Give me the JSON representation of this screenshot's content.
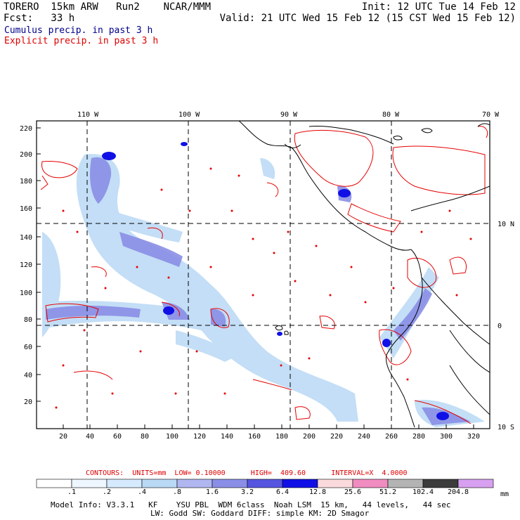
{
  "header": {
    "model": "TORERO  15km ARW   Run2    NCAR/MMM",
    "init": "Init: 12 UTC Tue 14 Feb 12",
    "fcst": "Fcst:   33 h",
    "valid": "Valid: 21 UTC Wed 15 Feb 12 (15 CST Wed 15 Feb 12)",
    "cumulus": "Cumulus precip. in past 3 h",
    "explicit": "Explicit precip. in past 3 h"
  },
  "map": {
    "top_labels": [
      "110 W",
      "100 W",
      "90 W",
      "80 W",
      "70 W"
    ],
    "right_labels": [
      "10 N",
      "0",
      "10 S"
    ],
    "y_ticks": [
      "220",
      "200",
      "180",
      "160",
      "140",
      "120",
      "100",
      "80",
      "60",
      "40",
      "20"
    ],
    "x_ticks": [
      "20",
      "40",
      "60",
      "80",
      "100",
      "120",
      "140",
      "160",
      "180",
      "200",
      "220",
      "240",
      "260",
      "280",
      "300",
      "320"
    ],
    "colors": {
      "cumulus": "#1e1ee6",
      "explicit": "#e60000",
      "coast": "#000000"
    }
  },
  "contour_info": {
    "text": "CONTOURS:  UNITS=mm  LOW= 0.10000      HIGH=  409.60      INTERVAL=X  4.0000"
  },
  "colorbar": {
    "labels": [
      ".1",
      ".2",
      ".4",
      ".8",
      "1.6",
      "3.2",
      "6.4",
      "12.8",
      "25.6",
      "51.2",
      "102.4",
      "204.8"
    ],
    "unit": "mm",
    "colors": [
      "#ffffff",
      "#eef6ff",
      "#d6eaff",
      "#b9d9f5",
      "#b0b6f0",
      "#8a8ee6",
      "#5555e0",
      "#1010e6",
      "#fadadd",
      "#f08cc0",
      "#b4b4b4",
      "#3c3c3c",
      "#d8a0f0"
    ]
  },
  "footer": {
    "line1": "Model Info: V3.3.1   KF    YSU PBL  WDM 6class  Noah LSM  15 km,   44 levels,   44 sec",
    "line2": "LW: Godd SW: Goddard DIFF: simple KM: 2D Smagor"
  }
}
